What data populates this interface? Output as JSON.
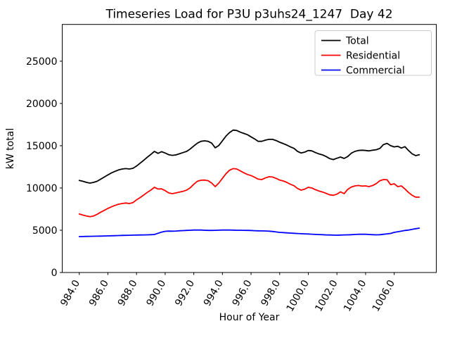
{
  "figure": {
    "title": "Timeseries Load for P3U p3uhs24_1247  Day 42",
    "xlabel": "Hour of Year",
    "ylabel": "kW total"
  },
  "colors": {
    "total": "#000000",
    "residential": "#ff0000",
    "commercial": "#0000ff",
    "axes": "#000000",
    "legend_border": "#cccccc",
    "background": "#ffffff"
  },
  "legend": {
    "position": "upper right",
    "entries": [
      {
        "label": "Total",
        "color": "#000000"
      },
      {
        "label": "Residential",
        "color": "#ff0000"
      },
      {
        "label": "Commercial",
        "color": "#0000ff"
      }
    ]
  },
  "chart_data": {
    "type": "line",
    "title": "Timeseries Load for P3U p3uhs24_1247  Day 42",
    "xlabel": "Hour of Year",
    "ylabel": "kW total",
    "grid": false,
    "legend_position": "upper right",
    "xlim": [
      982.81,
      1008.94
    ],
    "ylim": [
      0,
      29350
    ],
    "xticks": {
      "values": [
        984,
        986,
        988,
        990,
        992,
        994,
        996,
        998,
        1000,
        1002,
        1004,
        1006
      ],
      "labels": [
        "984.0",
        "986.0",
        "988.0",
        "990.0",
        "992.0",
        "994.0",
        "996.0",
        "998.0",
        "1000.0",
        "1002.0",
        "1004.0",
        "1006.0"
      ]
    },
    "yticks": {
      "values": [
        0,
        5000,
        10000,
        15000,
        20000,
        25000
      ],
      "labels": [
        "0",
        "5000",
        "10000",
        "15000",
        "20000",
        "25000"
      ]
    },
    "x": [
      984.0,
      984.25,
      984.5,
      984.75,
      985.0,
      985.25,
      985.5,
      985.75,
      986.0,
      986.25,
      986.5,
      986.75,
      987.0,
      987.25,
      987.5,
      987.75,
      988.0,
      988.25,
      988.5,
      988.75,
      989.0,
      989.25,
      989.5,
      989.75,
      990.0,
      990.25,
      990.5,
      990.75,
      991.0,
      991.25,
      991.5,
      991.75,
      992.0,
      992.25,
      992.5,
      992.75,
      993.0,
      993.25,
      993.5,
      993.75,
      994.0,
      994.25,
      994.5,
      994.75,
      995.0,
      995.25,
      995.5,
      995.75,
      996.0,
      996.25,
      996.5,
      996.75,
      997.0,
      997.25,
      997.5,
      997.75,
      998.0,
      998.25,
      998.5,
      998.75,
      999.0,
      999.25,
      999.5,
      999.75,
      1000.0,
      1000.25,
      1000.5,
      1000.75,
      1001.0,
      1001.25,
      1001.5,
      1001.75,
      1002.0,
      1002.25,
      1002.5,
      1002.75,
      1003.0,
      1003.25,
      1003.5,
      1003.75,
      1004.0,
      1004.25,
      1004.5,
      1004.75,
      1005.0,
      1005.25,
      1005.5,
      1005.75,
      1006.0,
      1006.25,
      1006.5,
      1006.75,
      1007.0,
      1007.25,
      1007.5,
      1007.75
    ],
    "series": [
      {
        "name": "Total",
        "color": "#000000",
        "values": [
          10890,
          10800,
          10660,
          10580,
          10660,
          10800,
          11050,
          11300,
          11550,
          11780,
          11970,
          12140,
          12250,
          12300,
          12250,
          12330,
          12600,
          12940,
          13270,
          13640,
          13970,
          14330,
          14100,
          14300,
          14140,
          13940,
          13860,
          13910,
          14050,
          14190,
          14330,
          14610,
          14970,
          15300,
          15520,
          15580,
          15520,
          15300,
          14750,
          15030,
          15580,
          16140,
          16560,
          16850,
          16800,
          16600,
          16450,
          16300,
          16050,
          15800,
          15520,
          15520,
          15660,
          15750,
          15750,
          15610,
          15410,
          15250,
          15080,
          14860,
          14690,
          14330,
          14140,
          14250,
          14440,
          14390,
          14190,
          14030,
          13910,
          13720,
          13470,
          13360,
          13520,
          13660,
          13500,
          13720,
          14110,
          14330,
          14440,
          14470,
          14440,
          14390,
          14470,
          14530,
          14690,
          15135,
          15275,
          15000,
          14860,
          14940,
          14720,
          14890,
          14440,
          14050,
          13830,
          13940
        ]
      },
      {
        "name": "Residential",
        "color": "#ff0000",
        "values": [
          6920,
          6800,
          6690,
          6610,
          6690,
          6890,
          7140,
          7360,
          7580,
          7770,
          7940,
          8080,
          8165,
          8220,
          8165,
          8275,
          8600,
          8860,
          9165,
          9470,
          9745,
          10080,
          9880,
          9900,
          9690,
          9415,
          9330,
          9415,
          9525,
          9605,
          9750,
          10025,
          10440,
          10800,
          10915,
          10940,
          10860,
          10580,
          10165,
          10580,
          11135,
          11690,
          12105,
          12300,
          12250,
          12025,
          11800,
          11600,
          11470,
          11270,
          11050,
          11000,
          11190,
          11330,
          11300,
          11135,
          10940,
          10830,
          10660,
          10440,
          10275,
          9940,
          9750,
          9860,
          10080,
          10000,
          9800,
          9640,
          9525,
          9360,
          9190,
          9135,
          9275,
          9550,
          9330,
          9830,
          10110,
          10250,
          10300,
          10220,
          10250,
          10165,
          10300,
          10525,
          10860,
          11000,
          10970,
          10385,
          10500,
          10165,
          10250,
          9890,
          9470,
          9135,
          8915,
          8915
        ]
      },
      {
        "name": "Commercial",
        "color": "#0000ff",
        "values": [
          4250,
          4260,
          4270,
          4280,
          4290,
          4300,
          4310,
          4320,
          4330,
          4345,
          4360,
          4375,
          4390,
          4400,
          4410,
          4420,
          4430,
          4440,
          4450,
          4460,
          4470,
          4500,
          4640,
          4780,
          4870,
          4900,
          4890,
          4910,
          4940,
          4960,
          4980,
          5000,
          5020,
          5030,
          5020,
          5000,
          4980,
          4985,
          4990,
          5010,
          5025,
          5030,
          5025,
          5015,
          5000,
          4995,
          4990,
          4980,
          4970,
          4950,
          4930,
          4920,
          4915,
          4890,
          4860,
          4800,
          4750,
          4720,
          4690,
          4665,
          4640,
          4615,
          4590,
          4570,
          4555,
          4530,
          4510,
          4490,
          4470,
          4450,
          4440,
          4425,
          4415,
          4430,
          4450,
          4460,
          4470,
          4500,
          4520,
          4525,
          4525,
          4500,
          4470,
          4460,
          4470,
          4520,
          4570,
          4620,
          4750,
          4820,
          4900,
          4970,
          5025,
          5100,
          5180,
          5250
        ]
      }
    ]
  }
}
